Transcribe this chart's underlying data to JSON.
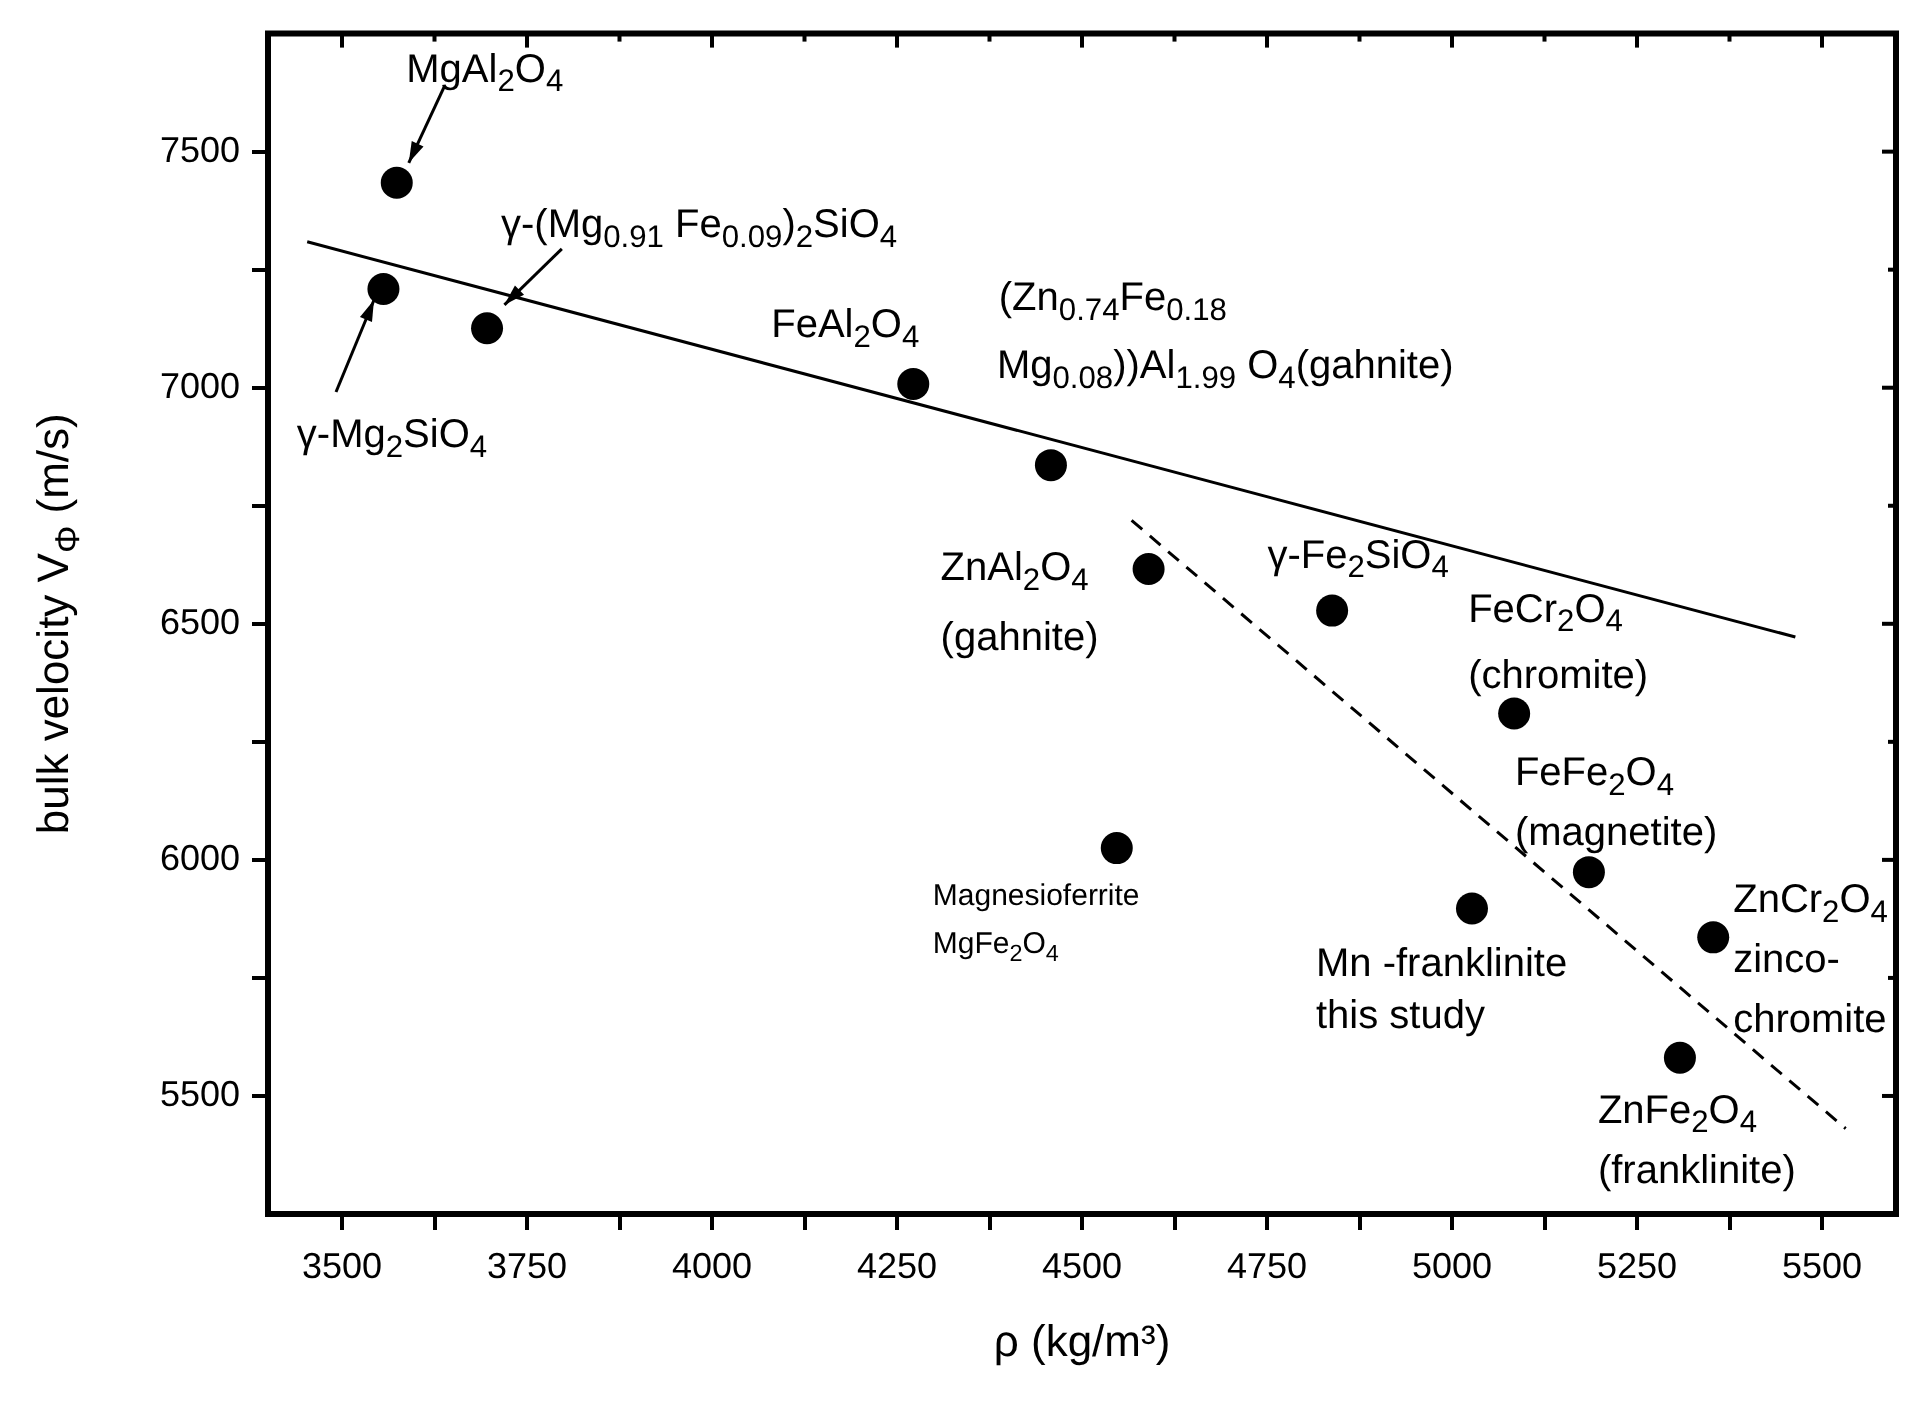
{
  "chart_data": {
    "type": "scatter",
    "xlabel": "ρ (kg/m³)",
    "ylabel": "bulk velocity V$_{Φ}$ (m/s)",
    "xlim": [
      3400,
      5600
    ],
    "ylim": [
      5250,
      7750
    ],
    "xticks": [
      3500,
      {
        "value": 3625,
        "label": null
      },
      3750,
      {
        "value": 3875,
        "label": null
      },
      4000,
      {
        "value": 4125,
        "label": null
      },
      4250,
      {
        "value": 4375,
        "label": null
      },
      4500,
      {
        "value": 4625,
        "label": null
      },
      4750,
      {
        "value": 4875,
        "label": null
      },
      5000,
      {
        "value": 5125,
        "label": null
      },
      5250,
      {
        "value": 5375,
        "label": null
      },
      5500
    ],
    "yticks": [
      5500,
      {
        "value": 5750,
        "label": null
      },
      6000,
      {
        "value": 6250,
        "label": null
      },
      6500,
      {
        "value": 6750,
        "label": null
      },
      7000,
      {
        "value": 7250,
        "label": null
      },
      7500
    ],
    "legend": false,
    "marker": "circle",
    "series": [
      {
        "color": "#000000",
        "x": [
          3574,
          3556,
          3696,
          4272,
          4458,
          4590,
          4838,
          5084,
          5185,
          4547,
          5027,
          5353,
          5308
        ],
        "values": [
          7434,
          7209,
          7126,
          7008,
          6836,
          6616,
          6528,
          6310,
          5974,
          6025,
          5897,
          5836,
          5581
        ]
      },
      {
        "type": "line",
        "color": "#000000",
        "marker": "none",
        "line_style": "solid",
        "x": [
          3453,
          5464
        ],
        "values": [
          7309,
          6472
        ]
      },
      {
        "type": "line",
        "color": "#000000",
        "marker": "none",
        "line_style": "dashed",
        "x": [
          4567,
          5532
        ],
        "values": [
          6719,
          5431
        ]
      }
    ],
    "annotations": [
      {
        "text": "MgAl$_{2}$O$_{4}$",
        "x": 3574,
        "y": 7434
      },
      {
        "text": "γ-(Mg$_{0.91}$ Fe$_{0.09}$)$_{2}$SiO$_{4}$",
        "x": 3696,
        "y": 7126
      },
      {
        "text": "γ-Mg$_{2}$SiO$_{4}$",
        "x": 3556,
        "y": 7209
      },
      {
        "text": "FeAl$_{2}$O$_{4}$",
        "x": 4272,
        "y": 7008
      },
      "(Zn$_{0.74}$Fe$_{0.18}$",
      {
        "text": "Mg$_{0.08}$))Al$_{1.99}$ O$_{4}$(gahnite)",
        "x": 4458,
        "y": 6836
      },
      {
        "text": "ZnAl$_{2}$O$_{4}$\n(gahnite)",
        "x": 4590,
        "y": 6616
      },
      {
        "text": "γ-Fe$_{2}$SiO$_{4}$",
        "x": 4838,
        "y": 6528
      },
      {
        "text": "FeCr$_{2}$O$_{4}$\n(chromite)",
        "x": 5084,
        "y": 6310
      },
      {
        "text": "FeFe$_{2}$O$_{4}$\n(magnetite)",
        "x": 5185,
        "y": 5974
      },
      {
        "text": "Magnesioferrite\nMgFe$_{2}$O$_{4}$",
        "x": 4547,
        "y": 6025
      },
      {
        "text": "Mn -franklinite\nthis study",
        "x": 5027,
        "y": 5897
      },
      {
        "text": "ZnCr$_{2}$O$_{4}$\nzinco-\nchromite",
        "x": 5353,
        "y": 5836
      },
      {
        "text": "ZnFe$_{2}$O$_{4}$\n(franklinite)",
        "x": 5308,
        "y": 5581
      }
    ]
  }
}
